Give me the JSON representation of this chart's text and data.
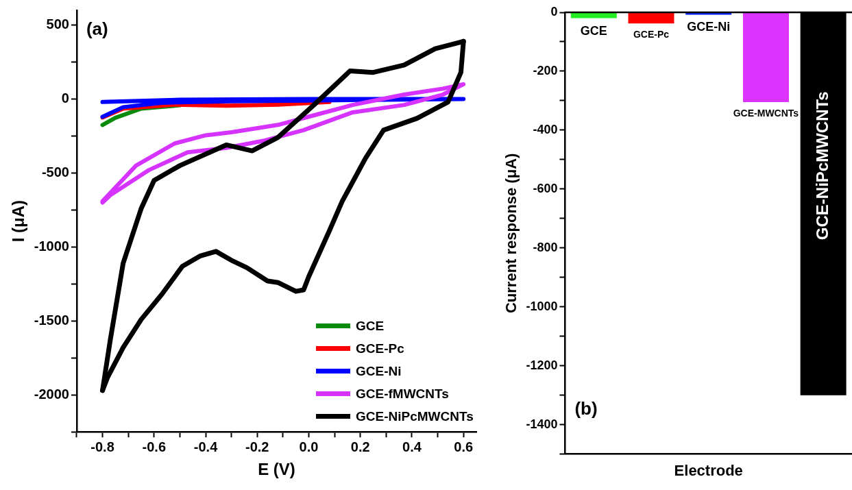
{
  "chart_data": [
    {
      "type": "line",
      "xlabel": "E (V)",
      "ylabel": "I (μA)",
      "annotations": [
        "(a)"
      ],
      "legend": "bottom right",
      "xlim": [
        -0.9,
        0.65
      ],
      "ylim": [
        -2250,
        600
      ],
      "xticks": [
        {
          "value": -0.9,
          "label": null
        },
        -0.8,
        {
          "value": -0.7,
          "label": null
        },
        -0.6,
        {
          "value": -0.5,
          "label": null
        },
        -0.4,
        {
          "value": -0.3,
          "label": null
        },
        -0.2,
        {
          "value": -0.1,
          "label": null
        },
        {
          "value": 0,
          "label": "0.0"
        },
        {
          "value": 0.1,
          "label": null
        },
        0.2,
        {
          "value": 0.3,
          "label": null
        },
        0.4,
        {
          "value": 0.5,
          "label": null
        },
        0.6
      ],
      "yticks": [
        {
          "value": -2250,
          "label": null
        },
        -2000,
        {
          "value": -1750,
          "label": null
        },
        -1500,
        {
          "value": -1250,
          "label": null
        },
        -1000,
        {
          "value": -750,
          "label": null
        },
        -500,
        {
          "value": -250,
          "label": null
        },
        0,
        {
          "value": 250,
          "label": null
        },
        500
      ],
      "series": [
        {
          "name": "GCE",
          "color": "#0a8a0a",
          "x": [
            -0.5,
            -0.65,
            -0.75,
            -0.8
          ],
          "values": [
            -42,
            -65,
            -127,
            -175
          ]
        },
        {
          "name": "GCE-Pc",
          "color": "#ff0000",
          "x": [
            0.08,
            -0.12,
            -0.32,
            -0.52,
            -0.72,
            -0.8
          ],
          "values": [
            -20,
            -38,
            -45,
            -38,
            -65,
            -125
          ]
        },
        {
          "name": "GCE-Ni",
          "color": "#0000ff",
          "x": [
            -0.8,
            -0.5,
            0,
            0.6,
            0.3,
            0,
            -0.3,
            -0.57,
            -0.72,
            -0.8
          ],
          "values": [
            -20,
            -5,
            0,
            0,
            -5,
            -10,
            -15,
            -25,
            -55,
            -120
          ]
        },
        {
          "name": "GCE-fMWCNTs",
          "color": "#d633ff",
          "x": [
            -0.8,
            -0.67,
            -0.52,
            -0.4,
            -0.3,
            -0.12,
            0.02,
            0.17,
            0.37,
            0.52,
            0.6,
            0.52,
            0.37,
            0.17,
            -0.02,
            -0.17,
            -0.32,
            -0.47,
            -0.62,
            -0.77,
            -0.8
          ],
          "values": [
            -690,
            -450,
            -300,
            -245,
            -225,
            -175,
            -110,
            -40,
            30,
            70,
            100,
            30,
            -40,
            -90,
            -210,
            -280,
            -330,
            -360,
            -480,
            -650,
            -700
          ]
        },
        {
          "color": "#000000",
          "x": [
            0.6,
            0.59,
            0.54,
            0.42,
            0.29,
            0.22,
            0.13,
            0.08,
            0,
            -0.02,
            -0.05,
            -0.12,
            -0.16,
            -0.24,
            -0.3,
            -0.36,
            -0.42,
            -0.49,
            -0.57,
            -0.65,
            -0.72,
            -0.78,
            -0.8
          ],
          "values": [
            390,
            180,
            -20,
            -130,
            -210,
            -400,
            -690,
            -890,
            -1200,
            -1290,
            -1300,
            -1240,
            -1230,
            -1140,
            -1090,
            -1030,
            -1060,
            -1130,
            -1320,
            -1490,
            -1680,
            -1880,
            -1970
          ]
        },
        {
          "name": "GCE-NiPcMWCNTs",
          "color": "#000000",
          "x": [
            -0.8,
            -0.77,
            -0.72,
            -0.65,
            -0.6,
            -0.5,
            -0.32,
            -0.22,
            -0.12,
            0.02,
            0.16,
            0.25,
            0.37,
            0.49,
            0.6
          ],
          "values": [
            -1970,
            -1630,
            -1110,
            -740,
            -550,
            -450,
            -310,
            -350,
            -260,
            -40,
            190,
            180,
            230,
            340,
            390
          ]
        }
      ]
    },
    {
      "type": "bar",
      "xlabel": "Electrode",
      "ylabel": "Current response (μA)",
      "annotations": [
        "(b)"
      ],
      "tick_labels": "y",
      "categories": [
        "GCE",
        "GCE-Pc",
        "GCE-Ni",
        "GCE-MWCNTs",
        "GCE-NiPcMWCNTs"
      ],
      "values": [
        -20,
        -38,
        -8,
        -305,
        -1300
      ],
      "colors": [
        "#22ee22",
        "#ff0000",
        "#0022ff",
        "#dd33ff",
        "#000000"
      ],
      "ylim": [
        -1500,
        0
      ],
      "yticks": [
        {
          "value": -1500,
          "label": null
        },
        -1400,
        {
          "value": -1300,
          "label": null
        },
        -1200,
        {
          "value": -1100,
          "label": null
        },
        -1000,
        {
          "value": -900,
          "label": null
        },
        -800,
        {
          "value": -700,
          "label": null
        },
        -600,
        {
          "value": -500,
          "label": null
        },
        -400,
        {
          "value": -300,
          "label": null
        },
        -200,
        {
          "value": -100,
          "label": null
        },
        0
      ]
    }
  ]
}
